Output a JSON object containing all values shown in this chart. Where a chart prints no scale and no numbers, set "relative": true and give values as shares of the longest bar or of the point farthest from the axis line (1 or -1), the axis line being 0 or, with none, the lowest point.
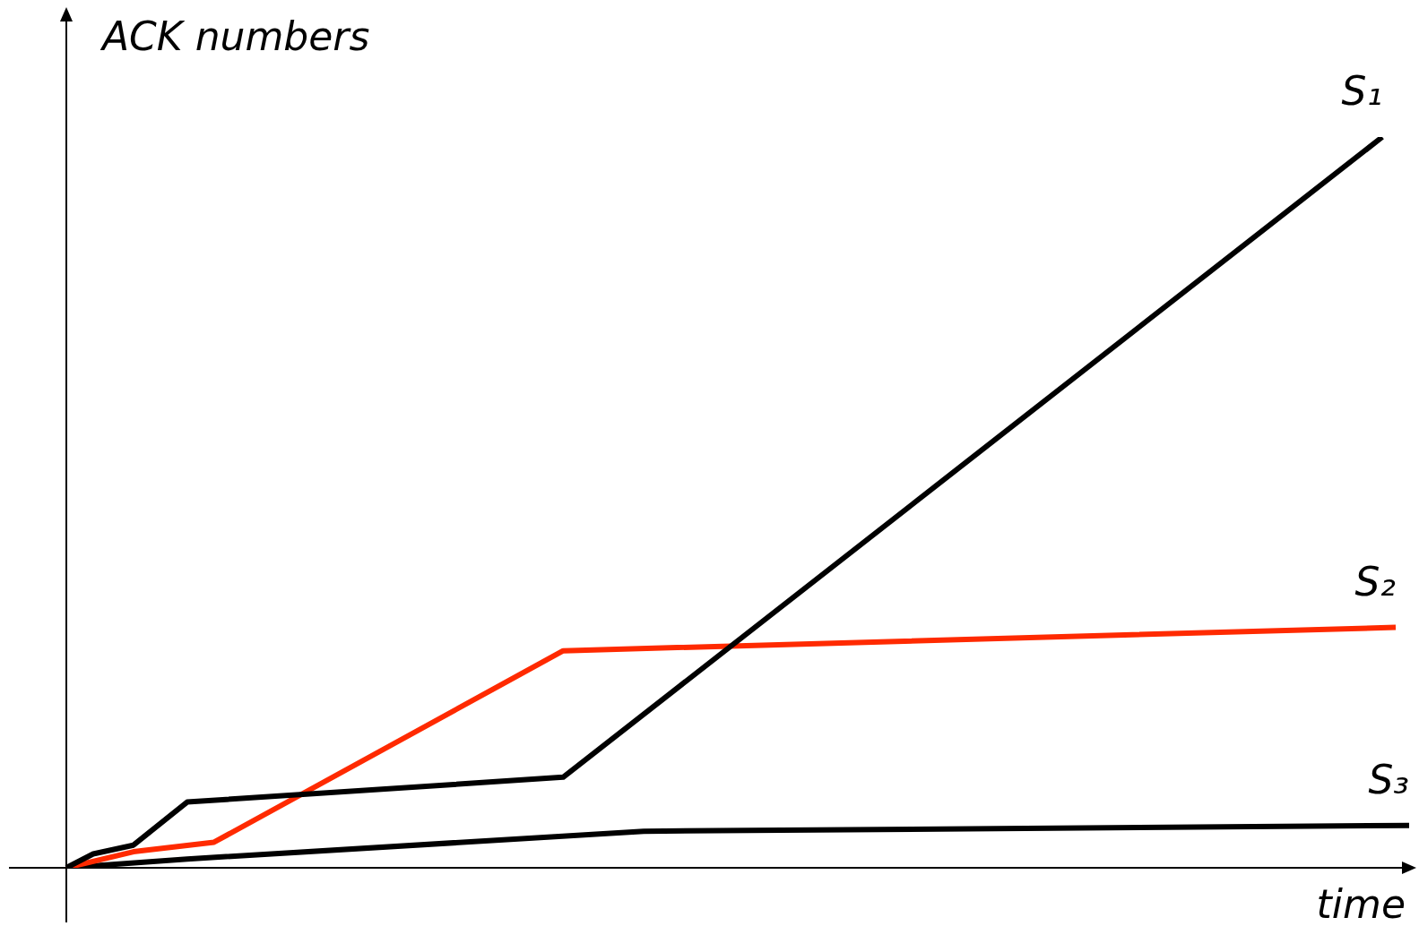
{
  "chart_data": {
    "type": "line",
    "relative": true,
    "xlabel": "time",
    "ylabel": "ACK numbers",
    "marker": "none",
    "line_style": "solid",
    "categories": [
      null,
      null,
      null,
      null,
      null,
      null,
      null,
      null,
      null,
      null,
      null,
      null,
      null,
      null,
      null,
      null,
      null,
      null,
      null,
      null,
      null,
      null,
      null,
      null,
      null,
      null,
      null,
      null,
      null,
      null,
      null,
      null,
      null,
      null,
      null,
      null,
      null,
      null,
      null,
      null,
      null,
      null,
      null,
      null,
      null,
      null,
      null,
      null,
      null,
      null,
      null,
      null,
      null,
      null,
      null,
      null,
      null,
      null,
      null,
      null,
      null,
      null,
      null,
      null,
      null,
      null,
      null,
      null,
      null,
      null,
      null,
      null,
      null,
      null,
      null,
      null,
      null,
      null,
      null,
      null,
      null,
      null,
      null,
      null,
      null,
      null,
      null,
      null,
      null,
      null,
      null,
      null,
      null,
      null,
      null,
      null,
      null,
      null,
      null,
      null,
      null
    ],
    "series": [
      {
        "name": "S₁",
        "color": "#000000",
        "values": [
          0,
          null,
          0.019,
          null,
          null,
          0.031,
          null,
          null,
          null,
          0.09,
          null,
          null,
          null,
          null,
          null,
          null,
          null,
          null,
          null,
          null,
          null,
          null,
          null,
          null,
          null,
          null,
          null,
          null,
          null,
          null,
          null,
          null,
          null,
          null,
          null,
          null,
          null,
          0.124,
          null,
          null,
          null,
          null,
          null,
          null,
          null,
          null,
          null,
          null,
          null,
          null,
          null,
          null,
          null,
          null,
          null,
          null,
          null,
          null,
          null,
          null,
          null,
          null,
          null,
          null,
          null,
          null,
          null,
          null,
          null,
          null,
          null,
          null,
          null,
          null,
          null,
          null,
          null,
          null,
          null,
          null,
          null,
          null,
          null,
          null,
          null,
          null,
          null,
          null,
          null,
          null,
          null,
          null,
          null,
          null,
          null,
          null,
          null,
          null,
          1,
          null,
          null
        ]
      },
      {
        "name": "S₂",
        "color": "#ff2a00",
        "values": [
          0,
          null,
          null,
          null,
          null,
          0.022,
          null,
          null,
          null,
          null,
          null,
          0.035,
          null,
          null,
          null,
          null,
          null,
          null,
          null,
          null,
          null,
          null,
          null,
          null,
          null,
          null,
          null,
          null,
          null,
          null,
          null,
          null,
          null,
          null,
          null,
          null,
          null,
          0.297,
          null,
          null,
          null,
          null,
          null,
          null,
          null,
          null,
          null,
          null,
          null,
          null,
          null,
          null,
          null,
          null,
          null,
          null,
          null,
          null,
          null,
          null,
          null,
          null,
          null,
          null,
          null,
          null,
          null,
          null,
          null,
          null,
          null,
          null,
          null,
          null,
          null,
          null,
          null,
          null,
          null,
          null,
          null,
          null,
          null,
          null,
          null,
          null,
          null,
          null,
          null,
          null,
          null,
          null,
          null,
          null,
          null,
          null,
          null,
          null,
          null,
          0.329,
          null
        ]
      },
      {
        "name": "S₃",
        "color": "#000000",
        "values": [
          0,
          null,
          null,
          null,
          null,
          null,
          null,
          null,
          null,
          0.012,
          null,
          null,
          null,
          null,
          null,
          null,
          null,
          null,
          null,
          null,
          null,
          null,
          null,
          null,
          null,
          null,
          null,
          null,
          null,
          null,
          null,
          null,
          null,
          null,
          null,
          null,
          null,
          null,
          null,
          null,
          null,
          null,
          null,
          0.05,
          null,
          null,
          null,
          null,
          null,
          null,
          null,
          null,
          null,
          null,
          null,
          null,
          null,
          null,
          null,
          null,
          null,
          null,
          null,
          null,
          null,
          null,
          null,
          null,
          null,
          null,
          null,
          null,
          null,
          null,
          null,
          null,
          null,
          null,
          null,
          null,
          null,
          null,
          null,
          null,
          null,
          null,
          null,
          null,
          null,
          null,
          null,
          null,
          null,
          null,
          null,
          null,
          null,
          null,
          null,
          null,
          0.058
        ]
      }
    ]
  }
}
